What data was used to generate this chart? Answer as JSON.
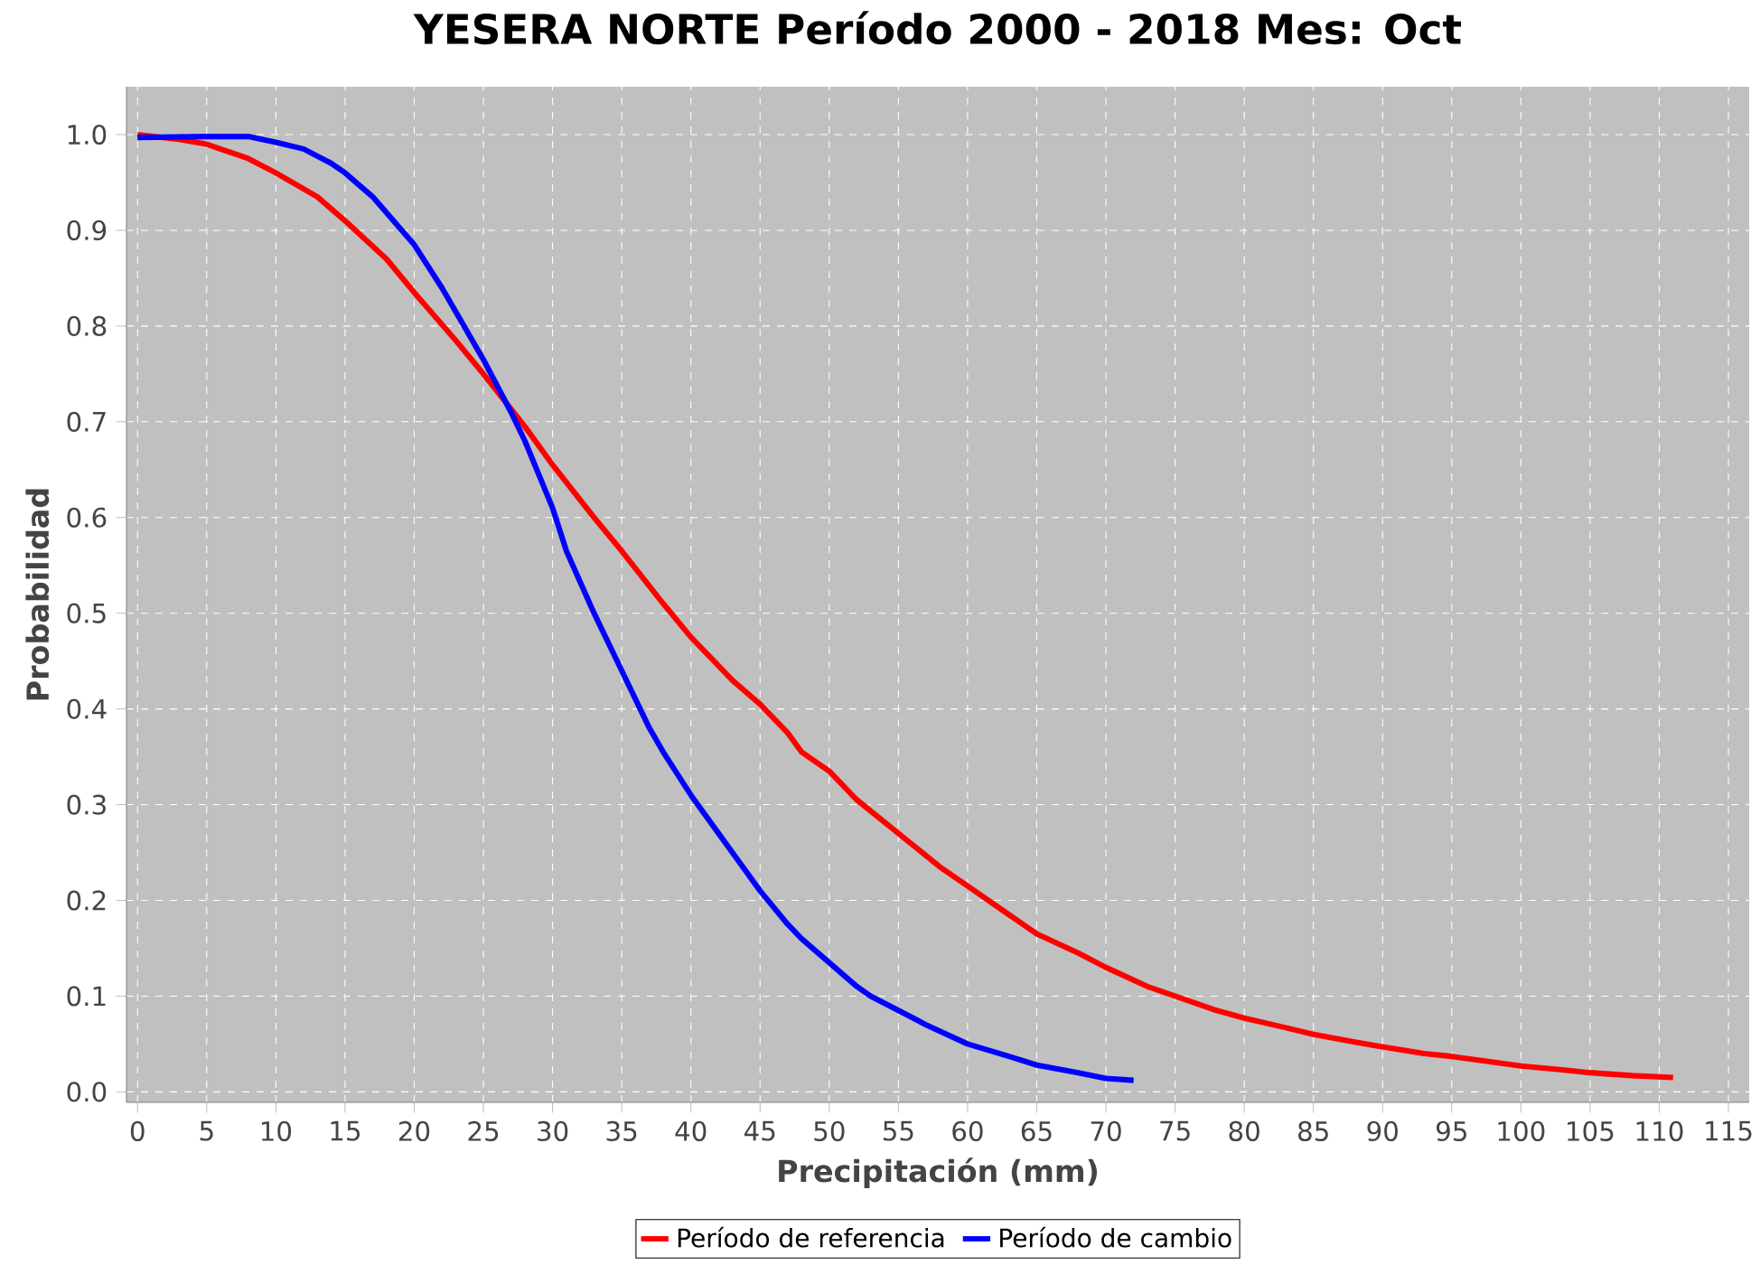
{
  "chart_data": {
    "type": "line",
    "title": "YESERA NORTE Período 2000 - 2018  Mes: Oct",
    "xlabel": "Precipitación (mm)",
    "ylabel": "Probabilidad",
    "xlim": [
      -0.8,
      116.5
    ],
    "ylim": [
      -0.011,
      1.05
    ],
    "xticks": [
      0,
      5,
      10,
      15,
      20,
      25,
      30,
      35,
      40,
      45,
      50,
      55,
      60,
      65,
      70,
      75,
      80,
      85,
      90,
      95,
      100,
      105,
      110,
      115
    ],
    "yticks": [
      {
        "value": 0,
        "label": "0.0"
      },
      0.1,
      0.2,
      0.3,
      0.4,
      0.5,
      0.6,
      0.7,
      0.8,
      0.9,
      {
        "value": 1,
        "label": "1.0"
      }
    ],
    "grid": true,
    "legend": "bottom",
    "series": [
      {
        "name": "Período de referencia",
        "color": "#ff0000",
        "x": [
          0,
          3,
          5,
          8,
          10,
          13,
          15,
          18,
          20,
          23,
          25,
          28,
          30,
          33,
          35,
          38,
          40,
          42,
          43,
          45,
          47,
          48,
          50,
          52,
          55,
          58,
          60,
          63,
          65,
          68,
          70,
          73,
          75,
          78,
          80,
          83,
          85,
          88,
          90,
          93,
          95,
          98,
          100,
          103,
          105,
          108,
          111
        ],
        "values": [
          1.0,
          0.995,
          0.99,
          0.975,
          0.96,
          0.935,
          0.91,
          0.87,
          0.835,
          0.785,
          0.75,
          0.695,
          0.655,
          0.6,
          0.565,
          0.51,
          0.475,
          0.445,
          0.43,
          0.405,
          0.375,
          0.355,
          0.335,
          0.305,
          0.27,
          0.235,
          0.215,
          0.185,
          0.165,
          0.145,
          0.13,
          0.11,
          0.1,
          0.085,
          0.077,
          0.067,
          0.06,
          0.052,
          0.047,
          0.04,
          0.037,
          0.031,
          0.027,
          0.023,
          0.02,
          0.017,
          0.015
        ]
      },
      {
        "name": "Período de cambio",
        "color": "#0000ff",
        "x": [
          0,
          5,
          8,
          10,
          12,
          14,
          15,
          17,
          20,
          22,
          24,
          25,
          27,
          28,
          30,
          31,
          33,
          35,
          37,
          38,
          40,
          42,
          43,
          45,
          47,
          48,
          50,
          52,
          53,
          55,
          57,
          60,
          63,
          65,
          68,
          70,
          72
        ],
        "values": [
          0.997,
          0.998,
          0.998,
          0.992,
          0.985,
          0.97,
          0.96,
          0.935,
          0.885,
          0.84,
          0.79,
          0.765,
          0.71,
          0.68,
          0.61,
          0.565,
          0.5,
          0.44,
          0.38,
          0.355,
          0.31,
          0.27,
          0.25,
          0.21,
          0.175,
          0.16,
          0.135,
          0.11,
          0.1,
          0.085,
          0.07,
          0.05,
          0.037,
          0.028,
          0.02,
          0.014,
          0.012
        ]
      }
    ]
  }
}
